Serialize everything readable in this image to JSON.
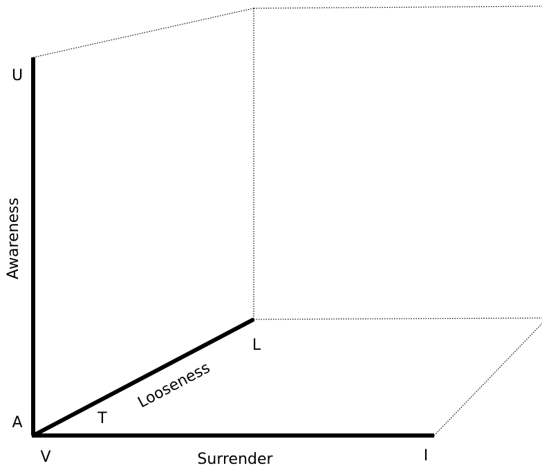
{
  "axes": {
    "vertical": "Awareness",
    "depth": "Looseness",
    "horizontal": "Surrender"
  },
  "points": {
    "top": "U",
    "origin_left": "A",
    "origin_bottom": "V",
    "depth_near": "T",
    "depth_end": "L",
    "horizontal_end": "I"
  }
}
